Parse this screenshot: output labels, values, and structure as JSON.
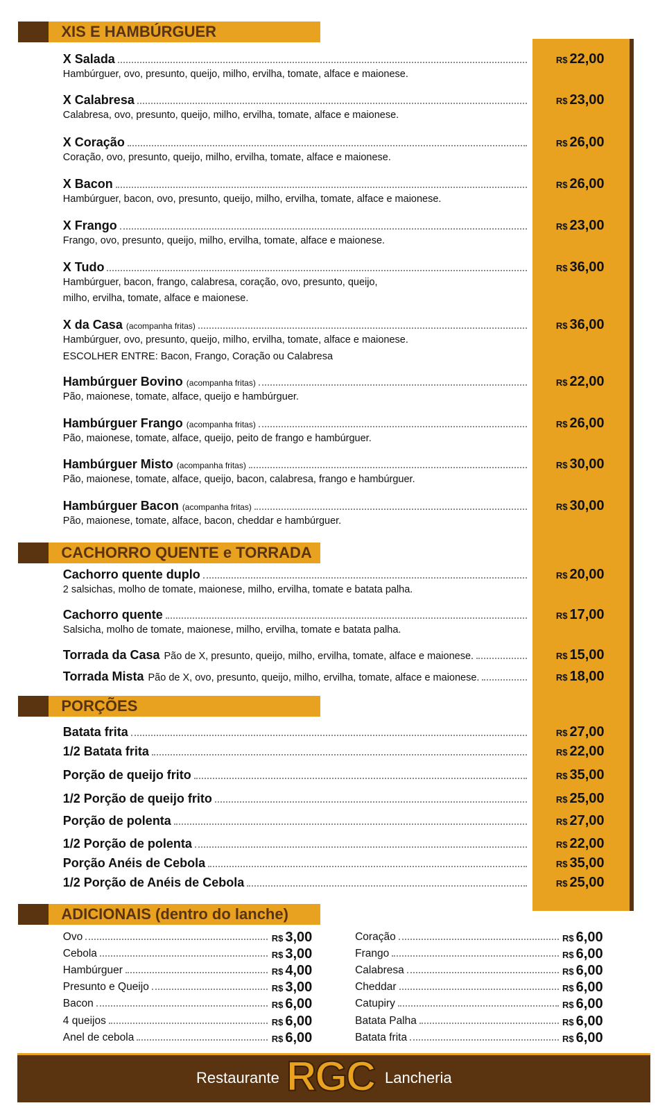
{
  "currency": "R$",
  "sections": [
    {
      "title": "XIS E HAMBÚRGUER",
      "items": [
        {
          "name": "X Salada",
          "desc": [
            "Hambúrguer, ovo, presunto, queijo, milho, ervilha, tomate, alface e maionese."
          ],
          "price": "22,00"
        },
        {
          "name": "X Calabresa",
          "desc": [
            "Calabresa, ovo, presunto, queijo, milho, ervilha, tomate, alface e maionese."
          ],
          "price": "23,00"
        },
        {
          "name": "X Coração",
          "desc": [
            "Coração, ovo, presunto, queijo, milho, ervilha, tomate, alface e maionese."
          ],
          "price": "26,00"
        },
        {
          "name": "X Bacon",
          "desc": [
            "Hambúrguer, bacon, ovo, presunto, queijo, milho, ervilha, tomate, alface e maionese."
          ],
          "price": "26,00"
        },
        {
          "name": "X Frango",
          "desc": [
            "Frango, ovo, presunto, queijo, milho, ervilha, tomate, alface e maionese."
          ],
          "price": "23,00"
        },
        {
          "name": "X Tudo",
          "desc": [
            "Hambúrguer, bacon, frango, calabresa, coração, ovo, presunto, queijo,",
            "milho, ervilha, tomate, alface e maionese."
          ],
          "price": "36,00"
        },
        {
          "name": "X da Casa",
          "note": "(acompanha fritas)",
          "desc": [
            "Hambúrguer, ovo, presunto, queijo, milho, ervilha, tomate, alface e maionese.",
            "ESCOLHER ENTRE: Bacon, Frango, Coração ou Calabresa"
          ],
          "price": "36,00"
        },
        {
          "name": "Hambúrguer Bovino",
          "note": "(acompanha fritas)",
          "desc": [
            "Pão, maionese, tomate, alface, queijo e hambúrguer."
          ],
          "price": "22,00"
        },
        {
          "name": "Hambúrguer Frango",
          "note": "(acompanha fritas)",
          "desc": [
            "Pão, maionese, tomate, alface, queijo, peito de frango e hambúrguer."
          ],
          "price": "26,00"
        },
        {
          "name": "Hambúrguer Misto",
          "note": "(acompanha fritas)",
          "desc": [
            "Pão, maionese, tomate, alface, queijo, bacon, calabresa, frango e hambúrguer."
          ],
          "price": "30,00"
        },
        {
          "name": "Hambúrguer Bacon",
          "note": "(acompanha fritas)",
          "desc": [
            "Pão, maionese, tomate, alface, bacon, cheddar e hambúrguer."
          ],
          "price": "30,00"
        }
      ]
    },
    {
      "title": "CACHORRO QUENTE e TORRADA",
      "items": [
        {
          "name": "Cachorro quente duplo",
          "desc": [
            "2 salsichas, molho de tomate, maionese, milho, ervilha, tomate e batata palha."
          ],
          "price": "20,00"
        },
        {
          "name": "Cachorro quente",
          "desc": [
            "Salsicha, molho de tomate, maionese, milho, ervilha, tomate e batata palha."
          ],
          "price": "17,00"
        },
        {
          "name": "Torrada da Casa",
          "detail": "Pão de X, presunto, queijo, milho, ervilha, tomate, alface e maionese.",
          "price": "15,00"
        },
        {
          "name": "Torrada Mista",
          "detail": "Pão de X, ovo, presunto, queijo, milho, ervilha, tomate, alface e maionese.",
          "price": "18,00"
        }
      ]
    },
    {
      "title": "PORÇÕES",
      "items": [
        {
          "name": "Batata frita",
          "price": "27,00"
        },
        {
          "name": "1/2 Batata frita",
          "price": "22,00"
        },
        {
          "name": "Porção de queijo frito",
          "price": "35,00"
        },
        {
          "name": "1/2 Porção de queijo frito",
          "price": "25,00"
        },
        {
          "name": "Porção de polenta",
          "price": "27,00"
        },
        {
          "name": "1/2 Porção de polenta",
          "price": "22,00"
        },
        {
          "name": "Porção Anéis de Cebola",
          "price": "35,00"
        },
        {
          "name": "1/2 Porção de Anéis de Cebola",
          "price": "25,00"
        }
      ]
    },
    {
      "title": "ADICIONAIS (dentro do lanche)",
      "columns": [
        [
          {
            "name": "Ovo",
            "price": "3,00"
          },
          {
            "name": "Cebola",
            "price": "3,00"
          },
          {
            "name": "Hambúrguer",
            "price": "4,00"
          },
          {
            "name": "Presunto e Queijo",
            "price": "3,00"
          },
          {
            "name": "Bacon",
            "price": "6,00"
          },
          {
            "name": "4 queijos",
            "price": "6,00"
          },
          {
            "name": "Anel de cebola",
            "price": "6,00"
          }
        ],
        [
          {
            "name": "Coração",
            "price": "6,00"
          },
          {
            "name": "Frango",
            "price": "6,00"
          },
          {
            "name": "Calabresa",
            "price": "6,00"
          },
          {
            "name": "Cheddar",
            "price": "6,00"
          },
          {
            "name": "Catupiry",
            "price": "6,00"
          },
          {
            "name": "Batata Palha",
            "price": "6,00"
          },
          {
            "name": "Batata frita",
            "price": "6,00"
          }
        ]
      ]
    }
  ],
  "footer": {
    "left": "Restaurante",
    "logo": "RGC",
    "right": "Lancheria"
  }
}
